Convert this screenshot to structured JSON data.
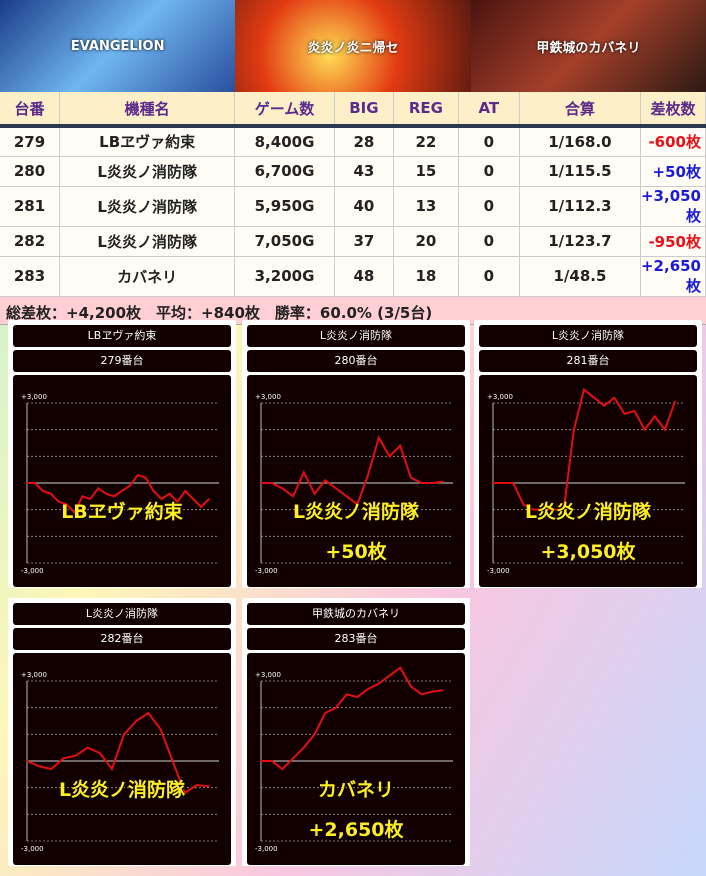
{
  "banners": [
    "EVANGELION",
    "炎炎ノ炎ニ帰セ",
    "甲鉄城のカバネリ"
  ],
  "table": {
    "headers": [
      "台番",
      "機種名",
      "ゲーム数",
      "BIG",
      "REG",
      "AT",
      "合算",
      "差枚数"
    ],
    "rows": [
      {
        "no": "279",
        "name": "LBヱヴァ約束",
        "games": "8,400G",
        "big": "28",
        "reg": "22",
        "at": "0",
        "total": "1/168.0",
        "diff": "-600枚",
        "sign": "neg"
      },
      {
        "no": "280",
        "name": "L炎炎ノ消防隊",
        "games": "6,700G",
        "big": "43",
        "reg": "15",
        "at": "0",
        "total": "1/115.5",
        "diff": "+50枚",
        "sign": "pos"
      },
      {
        "no": "281",
        "name": "L炎炎ノ消防隊",
        "games": "5,950G",
        "big": "40",
        "reg": "13",
        "at": "0",
        "total": "1/112.3",
        "diff": "+3,050枚",
        "sign": "pos"
      },
      {
        "no": "282",
        "name": "L炎炎ノ消防隊",
        "games": "7,050G",
        "big": "37",
        "reg": "20",
        "at": "0",
        "total": "1/123.7",
        "diff": "-950枚",
        "sign": "neg"
      },
      {
        "no": "283",
        "name": "カバネリ",
        "games": "3,200G",
        "big": "48",
        "reg": "18",
        "at": "0",
        "total": "1/48.5",
        "diff": "+2,650枚",
        "sign": "pos"
      }
    ]
  },
  "summary": "総差枚：+4,200枚　平均：+840枚　勝率：60.0% (3/5台)",
  "colors": {
    "line": "#e01010",
    "overlay": "#ffee22",
    "neg": "#e8101a",
    "pos": "#1a1ad8"
  },
  "chart_data": [
    {
      "type": "line",
      "title": "LBヱヴァ約束",
      "subtitle": "279番台",
      "ylim": [
        -3000,
        3000
      ],
      "ytick_labels": [
        "+3,000",
        "-3,000"
      ],
      "overlay": "LBヱヴァ約束",
      "overlay2": "",
      "values": [
        0,
        0,
        -300,
        -400,
        -700,
        -800,
        -1100,
        -500,
        -600,
        -200,
        -400,
        -500,
        -300,
        -100,
        300,
        200,
        -300,
        -600,
        -400,
        -700,
        -300,
        -600,
        -900,
        -600
      ]
    },
    {
      "type": "line",
      "title": "L炎炎ノ消防隊",
      "subtitle": "280番台",
      "ylim": [
        -3000,
        3000
      ],
      "ytick_labels": [
        "+3,000",
        "-3,000"
      ],
      "overlay": "L炎炎ノ消防隊",
      "overlay2": "+50枚",
      "values": [
        0,
        0,
        -200,
        -500,
        400,
        -400,
        100,
        -200,
        -500,
        -800,
        300,
        1700,
        1000,
        1400,
        200,
        0,
        0,
        50
      ]
    },
    {
      "type": "line",
      "title": "L炎炎ノ消防隊",
      "subtitle": "281番台",
      "ylim": [
        -3000,
        3000
      ],
      "ytick_labels": [
        "+3,000",
        "-3,000"
      ],
      "overlay": "L炎炎ノ消防隊",
      "overlay2": "+3,050枚",
      "values": [
        0,
        0,
        0,
        -800,
        -1000,
        -1000,
        -1000,
        -1000,
        2000,
        3500,
        3200,
        2900,
        3200,
        2600,
        2700,
        2000,
        2500,
        2000,
        3050
      ]
    },
    {
      "type": "line",
      "title": "L炎炎ノ消防隊",
      "subtitle": "282番台",
      "ylim": [
        -3000,
        3000
      ],
      "ytick_labels": [
        "+3,000",
        "-3,000"
      ],
      "overlay": "L炎炎ノ消防隊",
      "overlay2": "",
      "values": [
        0,
        -200,
        -300,
        100,
        200,
        500,
        300,
        -300,
        1000,
        1500,
        1800,
        1200,
        0,
        -1200,
        -900,
        -950
      ]
    },
    {
      "type": "line",
      "title": "甲鉄城のカバネリ",
      "subtitle": "283番台",
      "ylim": [
        -3000,
        3000
      ],
      "ytick_labels": [
        "+3,000",
        "-3,000"
      ],
      "overlay": "カバネリ",
      "overlay2": "+2,650枚",
      "values": [
        0,
        0,
        -300,
        100,
        500,
        1000,
        1800,
        2000,
        2500,
        2400,
        2700,
        2900,
        3200,
        3500,
        2800,
        2500,
        2600,
        2650
      ]
    }
  ]
}
